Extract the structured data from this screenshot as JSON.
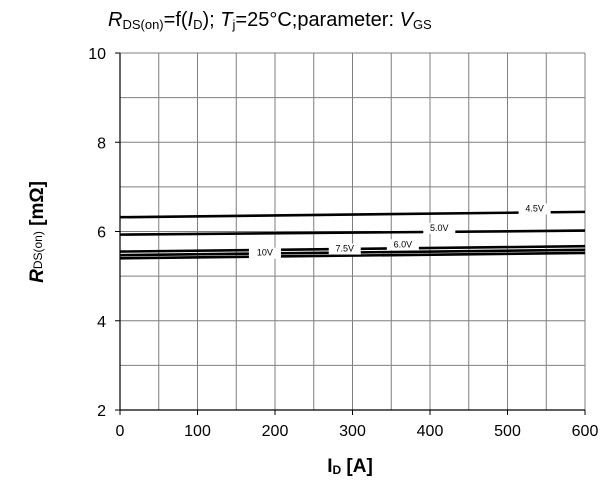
{
  "chart_data": {
    "type": "line",
    "title": {
      "r": "R",
      "r_sub": "DS(on)",
      "eq": "=f(",
      "i": "I",
      "i_sub": "D",
      "mid": "); ",
      "t": "T",
      "t_sub": "j",
      "cond": "=25°C;parameter: ",
      "v": "V",
      "v_sub": "GS"
    },
    "xlabel": {
      "main": "I",
      "sub": "D",
      "unit": " [A]"
    },
    "ylabel": {
      "main": "R",
      "sub": "DS(on)",
      "unit": " [mΩ]"
    },
    "xlim": [
      0,
      600
    ],
    "ylim": [
      2,
      10
    ],
    "xticks": [
      "0",
      "100",
      "200",
      "300",
      "400",
      "500",
      "600"
    ],
    "yticks": [
      "2",
      "4",
      "6",
      "8",
      "10"
    ],
    "grid": true,
    "series": [
      {
        "name": "4.5V",
        "x": [
          0,
          600
        ],
        "y": [
          6.32,
          6.44
        ],
        "label_at": 535
      },
      {
        "name": "5.0V",
        "x": [
          0,
          600
        ],
        "y": [
          5.93,
          6.02
        ],
        "label_at": 412
      },
      {
        "name": "6.0V",
        "x": [
          0,
          600
        ],
        "y": [
          5.55,
          5.67
        ],
        "label_at": 365
      },
      {
        "name": "7.5V",
        "x": [
          0,
          600
        ],
        "y": [
          5.47,
          5.59
        ],
        "label_at": 290
      },
      {
        "name": "10V",
        "x": [
          0,
          600
        ],
        "y": [
          5.4,
          5.52
        ],
        "label_at": 187
      }
    ]
  }
}
